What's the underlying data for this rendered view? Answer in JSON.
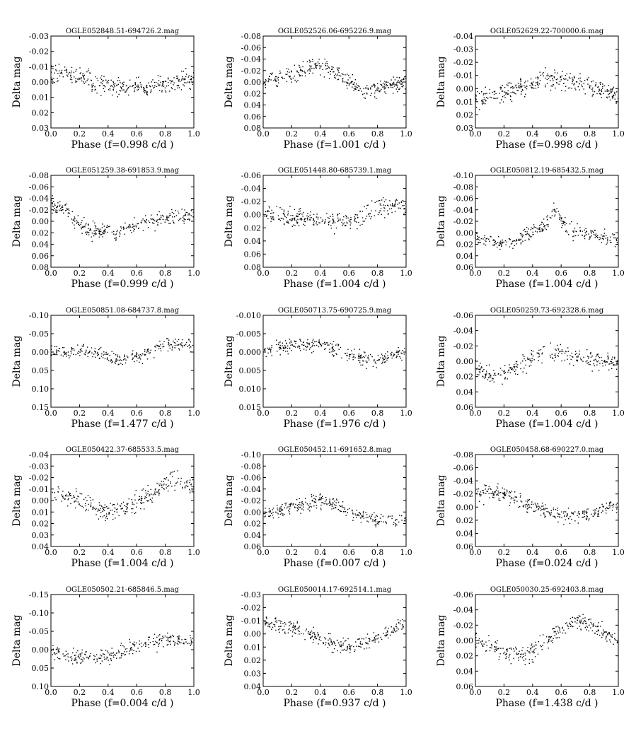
{
  "chart_data": [
    {
      "type": "scatter",
      "title": "OGLE052848.51-694726.2.mag",
      "xlabel": "Phase (f=0.998 c/d )",
      "ylabel": "Delta mag",
      "ylim": [
        -0.03,
        0.03
      ],
      "yticks": [
        "-0.03",
        "-0.02",
        "-0.01",
        "0.00",
        "0.01",
        "0.02",
        "0.03"
      ],
      "xlim": [
        0.0,
        1.0
      ],
      "xticks": [
        "0.0",
        "0.2",
        "0.4",
        "0.6",
        "0.8",
        "1.0"
      ],
      "y_inverted": true,
      "points_estimated": {
        "n": 320,
        "trend": [
          [
            0.0,
            -0.004
          ],
          [
            0.15,
            -0.006
          ],
          [
            0.3,
            0.0
          ],
          [
            0.5,
            0.003
          ],
          [
            0.7,
            0.004
          ],
          [
            0.85,
            0.002
          ],
          [
            1.0,
            -0.003
          ]
        ],
        "scatter": 0.006
      }
    },
    {
      "type": "scatter",
      "title": "OGLE052526.06-695226.9.mag",
      "xlabel": "Phase (f=1.001 c/d )",
      "ylabel": "Delta mag",
      "ylim": [
        -0.08,
        0.08
      ],
      "yticks": [
        "-0.08",
        "-0.06",
        "-0.04",
        "-0.02",
        "0.00",
        "0.02",
        "0.04",
        "0.06",
        "0.08"
      ],
      "xlim": [
        0.0,
        1.0
      ],
      "xticks": [
        "0.0",
        "0.2",
        "0.4",
        "0.6",
        "0.8",
        "1.0"
      ],
      "y_inverted": true,
      "points_estimated": {
        "n": 340,
        "trend": [
          [
            0.0,
            0.0
          ],
          [
            0.2,
            -0.015
          ],
          [
            0.4,
            -0.03
          ],
          [
            0.55,
            -0.01
          ],
          [
            0.7,
            0.015
          ],
          [
            0.85,
            0.01
          ],
          [
            1.0,
            0.0
          ]
        ],
        "scatter": 0.014
      }
    },
    {
      "type": "scatter",
      "title": "OGLE052629.22-700000.6.mag",
      "xlabel": "Phase (f=0.998 c/d )",
      "ylabel": "Delta mag",
      "ylim": [
        -0.04,
        0.03
      ],
      "yticks": [
        "-0.04",
        "-0.03",
        "-0.02",
        "-0.01",
        "0.00",
        "0.01",
        "0.02",
        "0.03"
      ],
      "xlim": [
        0.0,
        1.0
      ],
      "xticks": [
        "0.0",
        "0.2",
        "0.4",
        "0.6",
        "0.8",
        "1.0"
      ],
      "y_inverted": true,
      "points_estimated": {
        "n": 330,
        "trend": [
          [
            0.0,
            0.008
          ],
          [
            0.25,
            0.002
          ],
          [
            0.5,
            -0.008
          ],
          [
            0.7,
            -0.004
          ],
          [
            0.9,
            0.002
          ],
          [
            1.0,
            0.005
          ]
        ],
        "scatter": 0.007
      }
    },
    {
      "type": "scatter",
      "title": "OGLE051259.38-691853.9.mag",
      "xlabel": "Phase (f=0.999 c/d )",
      "ylabel": "Delta mag",
      "ylim": [
        -0.08,
        0.08
      ],
      "yticks": [
        "-0.08",
        "-0.06",
        "-0.04",
        "-0.02",
        "0.00",
        "0.02",
        "0.04",
        "0.06",
        "0.08"
      ],
      "xlim": [
        0.0,
        1.0
      ],
      "xticks": [
        "0.0",
        "0.2",
        "0.4",
        "0.6",
        "0.8",
        "1.0"
      ],
      "y_inverted": true,
      "points_estimated": {
        "n": 300,
        "trend": [
          [
            0.0,
            -0.03
          ],
          [
            0.1,
            -0.02
          ],
          [
            0.25,
            0.015
          ],
          [
            0.45,
            0.02
          ],
          [
            0.6,
            0.005
          ],
          [
            0.8,
            -0.005
          ],
          [
            1.0,
            -0.01
          ]
        ],
        "scatter": 0.013
      }
    },
    {
      "type": "scatter",
      "title": "OGLE051448.80-685739.1.mag",
      "xlabel": "Phase (f=1.004 c/d )",
      "ylabel": "Delta mag",
      "ylim": [
        -0.06,
        0.08
      ],
      "yticks": [
        "-0.06",
        "-0.04",
        "-0.02",
        "0.00",
        "0.02",
        "0.04",
        "0.06",
        "0.08"
      ],
      "xlim": [
        0.0,
        1.0
      ],
      "xticks": [
        "0.0",
        "0.2",
        "0.4",
        "0.6",
        "0.8",
        "1.0"
      ],
      "y_inverted": true,
      "points_estimated": {
        "n": 300,
        "trend": [
          [
            0.0,
            -0.005
          ],
          [
            0.2,
            0.005
          ],
          [
            0.45,
            0.01
          ],
          [
            0.6,
            0.012
          ],
          [
            0.8,
            -0.01
          ],
          [
            0.95,
            -0.015
          ],
          [
            1.0,
            -0.01
          ]
        ],
        "scatter": 0.013
      }
    },
    {
      "type": "scatter",
      "title": "OGLE050812.19-685432.5.mag",
      "xlabel": "Phase (f=1.004 c/d )",
      "ylabel": "Delta mag",
      "ylim": [
        -0.1,
        0.06
      ],
      "yticks": [
        "-0.10",
        "-0.08",
        "-0.06",
        "-0.04",
        "-0.02",
        "0.00",
        "0.02",
        "0.04",
        "0.06"
      ],
      "xlim": [
        0.0,
        1.0
      ],
      "xticks": [
        "0.0",
        "0.2",
        "0.4",
        "0.6",
        "0.8",
        "1.0"
      ],
      "y_inverted": true,
      "points_estimated": {
        "n": 290,
        "trend": [
          [
            0.0,
            0.01
          ],
          [
            0.2,
            0.02
          ],
          [
            0.4,
            0.0
          ],
          [
            0.5,
            -0.02
          ],
          [
            0.55,
            -0.04
          ],
          [
            0.65,
            -0.005
          ],
          [
            0.85,
            0.005
          ],
          [
            1.0,
            0.015
          ]
        ],
        "scatter": 0.012
      }
    },
    {
      "type": "scatter",
      "title": "OGLE050851.08-684737.8.mag",
      "xlabel": "Phase (f=1.477 c/d )",
      "ylabel": "Delta mag",
      "ylim": [
        -0.1,
        0.15
      ],
      "yticks": [
        "-0.10",
        "-0.05",
        "0.00",
        "0.05",
        "0.10",
        "0.15"
      ],
      "xlim": [
        0.0,
        1.0
      ],
      "xticks": [
        "0.0",
        "0.2",
        "0.4",
        "0.6",
        "0.8",
        "1.0"
      ],
      "y_inverted": true,
      "points_estimated": {
        "n": 260,
        "trend": [
          [
            0.0,
            0.0
          ],
          [
            0.2,
            -0.005
          ],
          [
            0.45,
            0.02
          ],
          [
            0.6,
            0.015
          ],
          [
            0.8,
            -0.02
          ],
          [
            1.0,
            -0.02
          ]
        ],
        "scatter": 0.017
      }
    },
    {
      "type": "scatter",
      "title": "OGLE050713.75-690725.9.mag",
      "xlabel": "Phase (f=1.976 c/d )",
      "ylabel": "Delta mag",
      "ylim": [
        -0.01,
        0.015
      ],
      "yticks": [
        "-0.010",
        "-0.005",
        "0.000",
        "0.005",
        "0.010",
        "0.015"
      ],
      "xlim": [
        0.0,
        1.0
      ],
      "xticks": [
        "0.0",
        "0.2",
        "0.4",
        "0.6",
        "0.8",
        "1.0"
      ],
      "y_inverted": true,
      "points_estimated": {
        "n": 280,
        "trend": [
          [
            0.0,
            0.0
          ],
          [
            0.2,
            -0.002
          ],
          [
            0.4,
            -0.002
          ],
          [
            0.6,
            0.001
          ],
          [
            0.8,
            0.002
          ],
          [
            1.0,
            0.0
          ]
        ],
        "scatter": 0.002
      }
    },
    {
      "type": "scatter",
      "title": "OGLE050259.73-692328.6.mag",
      "xlabel": "Phase (f=1.004 c/d )",
      "ylabel": "Delta mag",
      "ylim": [
        -0.06,
        0.06
      ],
      "yticks": [
        "-0.06",
        "-0.04",
        "-0.02",
        "0.00",
        "0.02",
        "0.04",
        "0.06"
      ],
      "xlim": [
        0.0,
        1.0
      ],
      "xticks": [
        "0.0",
        "0.2",
        "0.4",
        "0.6",
        "0.8",
        "1.0"
      ],
      "y_inverted": true,
      "points_estimated": {
        "n": 270,
        "trend": [
          [
            0.0,
            0.01
          ],
          [
            0.15,
            0.02
          ],
          [
            0.3,
            0.005
          ],
          [
            0.5,
            -0.015
          ],
          [
            0.7,
            -0.005
          ],
          [
            0.9,
            0.0
          ],
          [
            1.0,
            0.005
          ]
        ],
        "scatter": 0.011
      }
    },
    {
      "type": "scatter",
      "title": "OGLE050422.37-685533.5.mag",
      "xlabel": "Phase (f=1.004 c/d )",
      "ylabel": "Delta mag",
      "ylim": [
        -0.04,
        0.04
      ],
      "yticks": [
        "-0.04",
        "-0.03",
        "-0.02",
        "-0.01",
        "0.00",
        "0.01",
        "0.02",
        "0.03",
        "0.04"
      ],
      "xlim": [
        0.0,
        1.0
      ],
      "xticks": [
        "0.0",
        "0.2",
        "0.4",
        "0.6",
        "0.8",
        "1.0"
      ],
      "y_inverted": true,
      "points_estimated": {
        "n": 280,
        "trend": [
          [
            0.0,
            -0.008
          ],
          [
            0.2,
            0.0
          ],
          [
            0.4,
            0.012
          ],
          [
            0.55,
            0.005
          ],
          [
            0.7,
            -0.005
          ],
          [
            0.85,
            -0.018
          ],
          [
            1.0,
            -0.012
          ]
        ],
        "scatter": 0.008
      }
    },
    {
      "type": "scatter",
      "title": "OGLE050452.11-691652.8.mag",
      "xlabel": "Phase (f=0.007 c/d )",
      "ylabel": "Delta mag",
      "ylim": [
        -0.1,
        0.06
      ],
      "yticks": [
        "-0.10",
        "-0.08",
        "-0.06",
        "-0.04",
        "-0.02",
        "0.00",
        "0.02",
        "0.04",
        "0.06"
      ],
      "xlim": [
        0.0,
        1.0
      ],
      "xticks": [
        "0.0",
        "0.2",
        "0.4",
        "0.6",
        "0.8",
        "1.0"
      ],
      "y_inverted": true,
      "points_estimated": {
        "n": 280,
        "trend": [
          [
            0.0,
            0.005
          ],
          [
            0.3,
            -0.015
          ],
          [
            0.45,
            -0.02
          ],
          [
            0.6,
            0.0
          ],
          [
            0.8,
            0.015
          ],
          [
            1.0,
            0.015
          ]
        ],
        "scatter": 0.012
      }
    },
    {
      "type": "scatter",
      "title": "OGLE050458.68-690227.0.mag",
      "xlabel": "Phase (f=0.024 c/d )",
      "ylabel": "Delta mag",
      "ylim": [
        -0.08,
        0.06
      ],
      "yticks": [
        "-0.08",
        "-0.06",
        "-0.04",
        "-0.02",
        "0.00",
        "0.02",
        "0.04",
        "0.06"
      ],
      "xlim": [
        0.0,
        1.0
      ],
      "xticks": [
        "0.0",
        "0.2",
        "0.4",
        "0.6",
        "0.8",
        "1.0"
      ],
      "y_inverted": true,
      "points_estimated": {
        "n": 290,
        "trend": [
          [
            0.0,
            -0.02
          ],
          [
            0.2,
            -0.02
          ],
          [
            0.4,
            0.0
          ],
          [
            0.6,
            0.015
          ],
          [
            0.8,
            0.01
          ],
          [
            1.0,
            -0.005
          ]
        ],
        "scatter": 0.011
      }
    },
    {
      "type": "scatter",
      "title": "OGLE050502.21-685846.5.mag",
      "xlabel": "Phase (f=0.004 c/d )",
      "ylabel": "Delta mag",
      "ylim": [
        -0.15,
        0.1
      ],
      "yticks": [
        "-0.15",
        "-0.10",
        "-0.05",
        "0.00",
        "0.05",
        "0.10"
      ],
      "xlim": [
        0.0,
        1.0
      ],
      "xticks": [
        "0.0",
        "0.2",
        "0.4",
        "0.6",
        "0.8",
        "1.0"
      ],
      "y_inverted": true,
      "points_estimated": {
        "n": 260,
        "trend": [
          [
            0.0,
            0.0
          ],
          [
            0.2,
            0.02
          ],
          [
            0.4,
            0.02
          ],
          [
            0.6,
            -0.01
          ],
          [
            0.8,
            -0.03
          ],
          [
            1.0,
            -0.02
          ]
        ],
        "scatter": 0.02
      }
    },
    {
      "type": "scatter",
      "title": "OGLE050014.17-692514.1.mag",
      "xlabel": "Phase (f=0.937 c/d )",
      "ylabel": "Delta mag",
      "ylim": [
        -0.03,
        0.04
      ],
      "yticks": [
        "-0.03",
        "-0.02",
        "-0.01",
        "0.00",
        "0.01",
        "0.02",
        "0.03",
        "0.04"
      ],
      "xlim": [
        0.0,
        1.0
      ],
      "xticks": [
        "0.0",
        "0.2",
        "0.4",
        "0.6",
        "0.8",
        "1.0"
      ],
      "y_inverted": true,
      "points_estimated": {
        "n": 280,
        "trend": [
          [
            0.0,
            -0.01
          ],
          [
            0.2,
            -0.005
          ],
          [
            0.4,
            0.005
          ],
          [
            0.6,
            0.01
          ],
          [
            0.8,
            0.003
          ],
          [
            1.0,
            -0.01
          ]
        ],
        "scatter": 0.006
      }
    },
    {
      "type": "scatter",
      "title": "OGLE050030.25-692403.8.mag",
      "xlabel": "Phase (f=1.438 c/d )",
      "ylabel": "Delta mag",
      "ylim": [
        -0.06,
        0.06
      ],
      "yticks": [
        "-0.06",
        "-0.04",
        "-0.02",
        "0.00",
        "0.02",
        "0.04",
        "0.06"
      ],
      "xlim": [
        0.0,
        1.0
      ],
      "xticks": [
        "0.0",
        "0.2",
        "0.4",
        "0.6",
        "0.8",
        "1.0"
      ],
      "y_inverted": true,
      "points_estimated": {
        "n": 290,
        "trend": [
          [
            0.0,
            0.0
          ],
          [
            0.2,
            0.015
          ],
          [
            0.35,
            0.02
          ],
          [
            0.5,
            0.0
          ],
          [
            0.7,
            -0.025
          ],
          [
            0.85,
            -0.015
          ],
          [
            1.0,
            0.0
          ]
        ],
        "scatter": 0.011
      }
    }
  ],
  "colors": {
    "points": "#000000",
    "frame": "#000000",
    "background": "#ffffff"
  }
}
